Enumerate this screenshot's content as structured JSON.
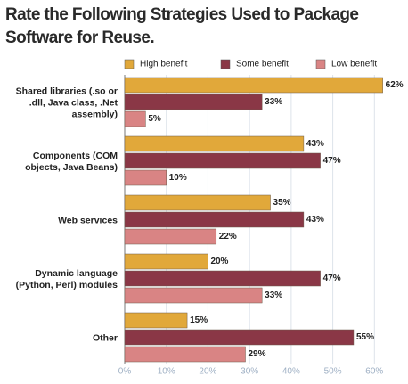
{
  "chart_data": {
    "type": "bar",
    "orientation": "horizontal",
    "title": "Rate the Following Strategies Used to Package Software for Reuse.",
    "categories": [
      "Shared libraries (.so or .dll, Java class, .Net assembly)",
      "Components (COM objects, Java Beans)",
      "Web services",
      "Dynamic language (Python, Perl) modules",
      "Other"
    ],
    "series": [
      {
        "name": "High benefit",
        "color": "#e1a83a",
        "values": [
          62,
          43,
          35,
          20,
          15
        ],
        "value_labels": [
          "62%",
          "43%",
          "35%",
          "20%",
          "15%"
        ]
      },
      {
        "name": "Some benefit",
        "color": "#8a3746",
        "values": [
          33,
          47,
          43,
          47,
          55
        ],
        "value_labels": [
          "33%",
          "47%",
          "43%",
          "47%",
          "55%"
        ]
      },
      {
        "name": "Low benefit",
        "color": "#d98484",
        "values": [
          5,
          10,
          22,
          33,
          29
        ],
        "value_labels": [
          "5%",
          "10%",
          "22%",
          "33%",
          "29%"
        ]
      }
    ],
    "xlim": [
      0,
      64
    ],
    "xticks": [
      {
        "value": 0,
        "label": "0%"
      },
      {
        "value": 10,
        "label": "10%"
      },
      {
        "value": 20,
        "label": "20%"
      },
      {
        "value": 30,
        "label": "30%"
      },
      {
        "value": 40,
        "label": "40%"
      },
      {
        "value": 50,
        "label": "50%"
      },
      {
        "value": 60,
        "label": "60%"
      }
    ],
    "grid": true,
    "legend": "top"
  }
}
